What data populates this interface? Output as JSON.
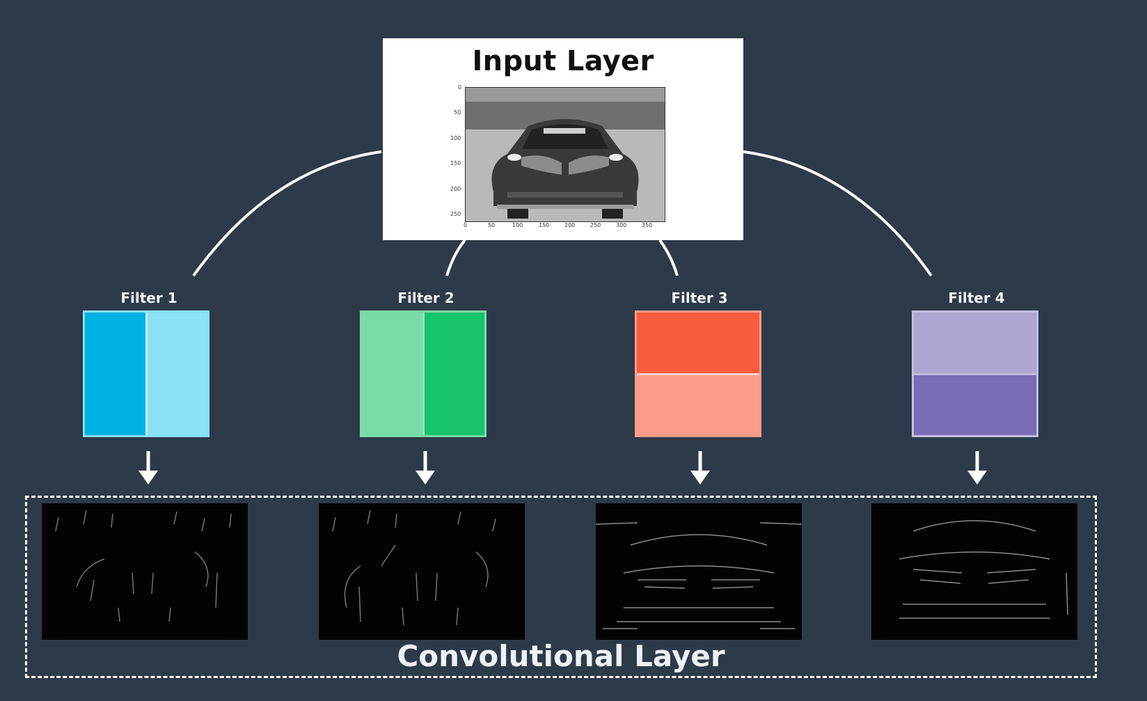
{
  "input_layer": {
    "title": "Input Layer",
    "y_ticks": [
      "0",
      "50",
      "100",
      "150",
      "200",
      "250"
    ],
    "x_ticks": [
      "0",
      "50",
      "100",
      "150",
      "200",
      "250",
      "300",
      "350"
    ]
  },
  "filters": [
    {
      "label": "Filter 1",
      "orientation": "vertical",
      "colors": [
        "#00b2e3",
        "#8ae0f5"
      ],
      "border": "#8ae0f5"
    },
    {
      "label": "Filter 2",
      "orientation": "vertical",
      "colors": [
        "#7bdba8",
        "#17c36b"
      ],
      "border": "#7bdba8"
    },
    {
      "label": "Filter 3",
      "orientation": "horizontal",
      "colors": [
        "#f95b3d",
        "#fb9c8a"
      ],
      "border": "#fb9c8a"
    },
    {
      "label": "Filter 4",
      "orientation": "horizontal",
      "colors": [
        "#aea7d3",
        "#7a6cb5"
      ],
      "border": "#c4bee3"
    }
  ],
  "convolutional_layer": {
    "title": "Convolutional Layer"
  },
  "colors": {
    "background": "#2d3a4a",
    "connector": "#ffffff"
  }
}
